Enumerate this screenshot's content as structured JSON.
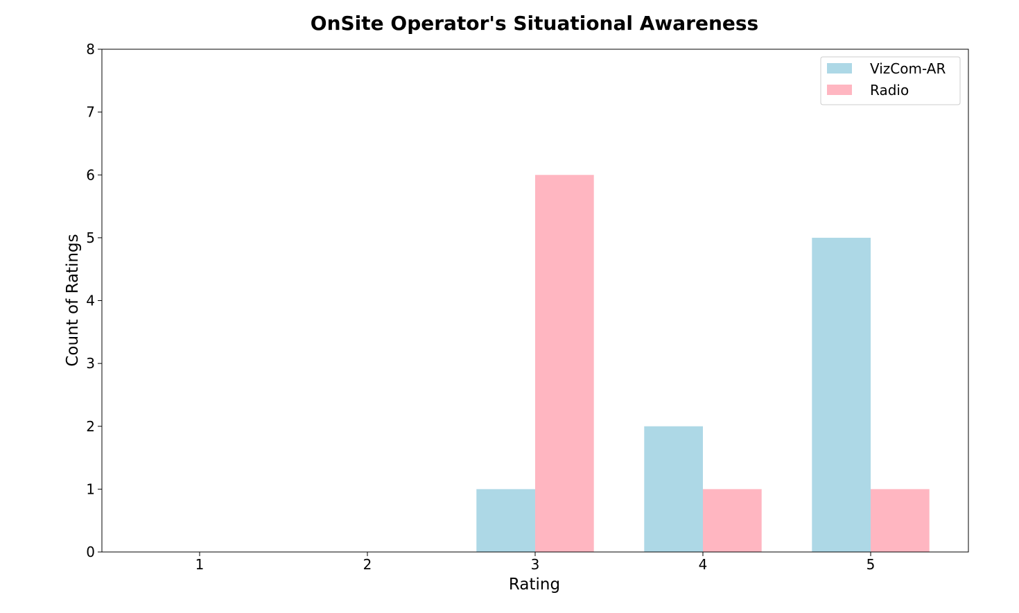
{
  "chart_data": {
    "type": "bar",
    "title": "OnSite Operator's Situational Awareness",
    "xlabel": "Rating",
    "ylabel": "Count of Ratings",
    "categories": [
      "1",
      "2",
      "3",
      "4",
      "5"
    ],
    "series": [
      {
        "name": "VizCom-AR",
        "values": [
          0,
          0,
          1,
          2,
          5
        ],
        "color": "#add8e6"
      },
      {
        "name": "Radio",
        "values": [
          0,
          0,
          6,
          1,
          1
        ],
        "color": "#ffb6c1"
      }
    ],
    "ylim": [
      0,
      8
    ],
    "yticks": [
      "0",
      "1",
      "2",
      "3",
      "4",
      "5",
      "6",
      "7",
      "8"
    ],
    "grid": false,
    "legend_position": "top-right"
  }
}
